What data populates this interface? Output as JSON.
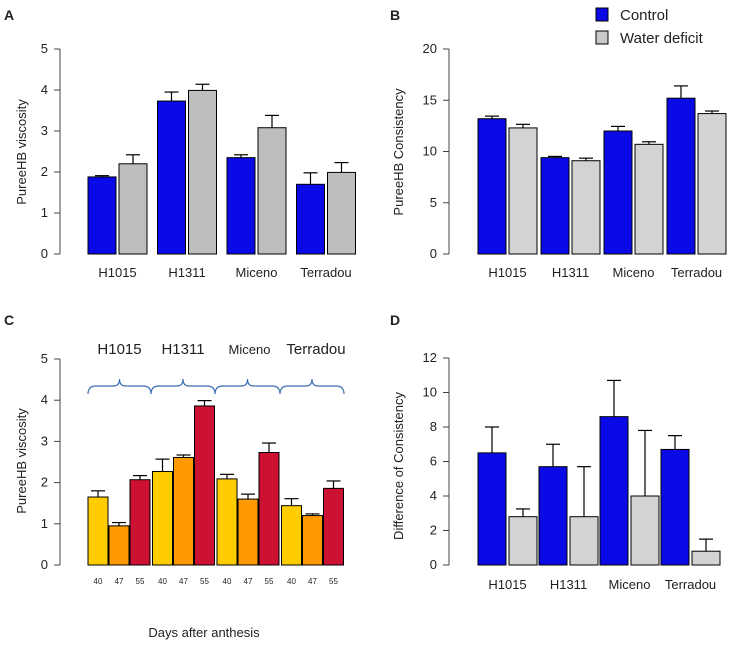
{
  "legend": [
    {
      "label": "Control",
      "color": "#0a0ae6"
    },
    {
      "label": "Water deficit",
      "color": "#c8c8c8"
    }
  ],
  "chart_data": [
    {
      "panel": "A",
      "type": "bar",
      "ylabel": "PureeHB viscosity",
      "ylim": [
        0,
        5
      ],
      "yticks": [
        0,
        1,
        2,
        3,
        4,
        5
      ],
      "categories": [
        "H1015",
        "H1311",
        "Miceno",
        "Terradou"
      ],
      "series": [
        {
          "name": "Control",
          "color": "#0a0ae6",
          "values": [
            1.88,
            3.73,
            2.35,
            1.7
          ],
          "errors": [
            0.03,
            0.22,
            0.07,
            0.28
          ]
        },
        {
          "name": "Water deficit",
          "color": "#bebebe",
          "values": [
            2.2,
            3.99,
            3.08,
            1.99
          ],
          "errors": [
            0.22,
            0.15,
            0.3,
            0.24
          ]
        }
      ]
    },
    {
      "panel": "B",
      "type": "bar",
      "ylabel": "PureeHB Consistency",
      "ylim": [
        0,
        20
      ],
      "yticks": [
        0,
        5,
        10,
        15,
        20
      ],
      "categories": [
        "H1015",
        "H1311",
        "Miceno",
        "Terradou"
      ],
      "series": [
        {
          "name": "Control",
          "color": "#0a0ae6",
          "values": [
            13.2,
            9.4,
            12.0,
            15.2
          ],
          "errors": [
            0.25,
            0.12,
            0.45,
            1.2
          ]
        },
        {
          "name": "Water deficit",
          "color": "#d3d3d3",
          "values": [
            12.3,
            9.1,
            10.7,
            13.7
          ],
          "errors": [
            0.35,
            0.25,
            0.25,
            0.25
          ]
        }
      ]
    },
    {
      "panel": "C",
      "type": "bar",
      "ylabel": "PureeHB viscosity",
      "xlabel": "Days after anthesis",
      "ylim": [
        0,
        5
      ],
      "yticks": [
        0,
        1,
        2,
        3,
        4,
        5
      ],
      "groups": [
        "H1015",
        "H1311",
        "Miceno",
        "Terradou"
      ],
      "days": [
        "40",
        "47",
        "55"
      ],
      "colors": [
        "#ffcc00",
        "#ff9900",
        "#cc1133"
      ],
      "values": [
        [
          1.65,
          0.95,
          2.07
        ],
        [
          2.27,
          2.61,
          3.86
        ],
        [
          2.09,
          1.6,
          2.73
        ],
        [
          1.44,
          1.2,
          1.86
        ]
      ],
      "errors": [
        [
          0.15,
          0.08,
          0.1
        ],
        [
          0.3,
          0.06,
          0.13
        ],
        [
          0.11,
          0.12,
          0.23
        ],
        [
          0.17,
          0.04,
          0.18
        ]
      ]
    },
    {
      "panel": "D",
      "type": "bar",
      "ylabel": "Difference of Consistency",
      "ylim": [
        0,
        12
      ],
      "yticks": [
        0,
        2,
        4,
        6,
        8,
        10,
        12
      ],
      "categories": [
        "H1015",
        "H1311",
        "Miceno",
        "Terradou"
      ],
      "series": [
        {
          "name": "Control",
          "color": "#0a0ae6",
          "values": [
            6.5,
            5.7,
            8.6,
            6.7
          ],
          "errors": [
            1.5,
            1.3,
            2.1,
            0.8
          ]
        },
        {
          "name": "Water deficit",
          "color": "#d3d3d3",
          "values": [
            2.8,
            2.8,
            4.0,
            0.8
          ],
          "errors": [
            0.45,
            2.9,
            3.8,
            0.7
          ]
        }
      ]
    }
  ]
}
